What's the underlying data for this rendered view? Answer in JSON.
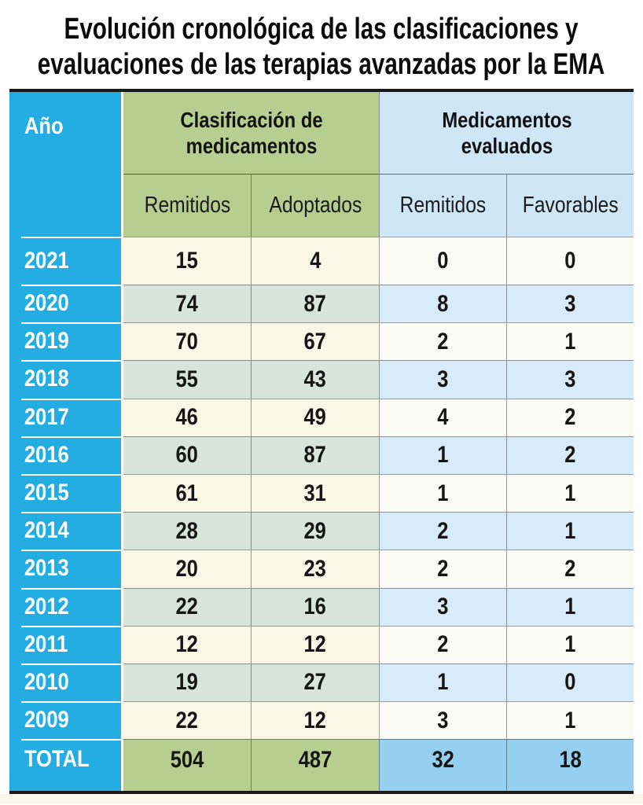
{
  "title_lines": [
    "Evolución cronológica de las clasificaciones y",
    "evaluaciones de las terapias avanzadas por la EMA"
  ],
  "chart_data": {
    "type": "table",
    "title": "Evolución cronológica de las clasificaciones y evaluaciones de las terapias avanzadas por la EMA",
    "year_column_header": "Año",
    "column_groups": [
      {
        "label": "Clasificación de medicamentos",
        "columns": [
          "Remitidos",
          "Adoptados"
        ]
      },
      {
        "label": "Medicamentos evaluados",
        "columns": [
          "Remitidos",
          "Favorables"
        ]
      }
    ],
    "rows": [
      {
        "year": "2021",
        "values": [
          15,
          4,
          0,
          0
        ]
      },
      {
        "year": "2020",
        "values": [
          74,
          87,
          8,
          3
        ]
      },
      {
        "year": "2019",
        "values": [
          70,
          67,
          2,
          1
        ]
      },
      {
        "year": "2018",
        "values": [
          55,
          43,
          3,
          3
        ]
      },
      {
        "year": "2017",
        "values": [
          46,
          49,
          4,
          2
        ]
      },
      {
        "year": "2016",
        "values": [
          60,
          87,
          1,
          2
        ]
      },
      {
        "year": "2015",
        "values": [
          61,
          31,
          1,
          1
        ]
      },
      {
        "year": "2014",
        "values": [
          28,
          29,
          2,
          1
        ]
      },
      {
        "year": "2013",
        "values": [
          20,
          23,
          2,
          2
        ]
      },
      {
        "year": "2012",
        "values": [
          22,
          16,
          3,
          1
        ]
      },
      {
        "year": "2011",
        "values": [
          12,
          12,
          2,
          1
        ]
      },
      {
        "year": "2010",
        "values": [
          19,
          27,
          1,
          0
        ]
      },
      {
        "year": "2009",
        "values": [
          22,
          12,
          3,
          1
        ]
      }
    ],
    "total": {
      "label": "TOTAL",
      "values": [
        504,
        487,
        32,
        18
      ]
    }
  },
  "colors": {
    "year_column_cyan": "#23ADE3",
    "classification_header_green": "#B6CE8F",
    "evaluated_header_blue": "#CEE6F5",
    "row_cream": "#FAF7E6",
    "row_green_tint": "#D8E5DC",
    "row_white": "#FCFCF6",
    "row_blue_tint": "#D8EBF9",
    "total_green": "#B6CE8F",
    "total_blue": "#95D0F0",
    "border_dark": "#191919"
  }
}
